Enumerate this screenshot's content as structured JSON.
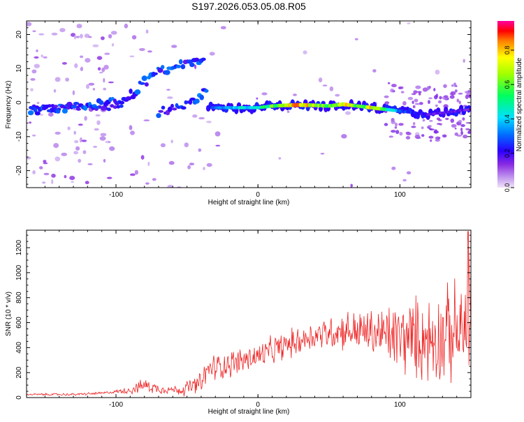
{
  "title": "S197.2026.053.05.08.R05",
  "chart_data": [
    {
      "type": "heatmap",
      "xlabel": "Height of straight line (km)",
      "ylabel": "Frequency (Hz)",
      "xlim": [
        -163,
        150
      ],
      "ylim": [
        -25,
        24
      ],
      "xticks": [
        -100,
        0,
        100
      ],
      "yticks": [
        -20,
        -10,
        0,
        10,
        20
      ],
      "colorbar": {
        "label": "Normalized spectral amplitude",
        "range": [
          0,
          0.97
        ],
        "ticks": [
          0.0,
          0.2,
          0.4,
          0.6,
          0.8
        ]
      },
      "ridge": [
        {
          "x": -160,
          "y": -2
        },
        {
          "x": -140,
          "y": -2
        },
        {
          "x": -120,
          "y": -1
        },
        {
          "x": -100,
          "y": 0
        },
        {
          "x": -90,
          "y": 2
        },
        {
          "x": -80,
          "y": 6
        },
        {
          "x": -70,
          "y": 9
        },
        {
          "x": -60,
          "y": 10
        },
        {
          "x": -45,
          "y": 12
        },
        {
          "x": -38,
          "y": 13
        }
      ],
      "ridge2": [
        {
          "x": -70,
          "y": -3
        },
        {
          "x": -60,
          "y": -2
        },
        {
          "x": -50,
          "y": 0
        },
        {
          "x": -40,
          "y": 2
        },
        {
          "x": -35,
          "y": 4
        }
      ],
      "band": [
        {
          "x": -35,
          "y": -1.5
        },
        {
          "x": -20,
          "y": -1.5
        },
        {
          "x": -10,
          "y": -1.5
        },
        {
          "x": 0,
          "y": -1.5
        },
        {
          "x": 10,
          "y": -1
        },
        {
          "x": 20,
          "y": -0.8
        },
        {
          "x": 30,
          "y": -0.7
        },
        {
          "x": 40,
          "y": -0.8
        },
        {
          "x": 50,
          "y": -1
        },
        {
          "x": 60,
          "y": -0.5
        },
        {
          "x": 70,
          "y": -1
        },
        {
          "x": 80,
          "y": -1.5
        },
        {
          "x": 90,
          "y": -2
        },
        {
          "x": 100,
          "y": -2.5
        },
        {
          "x": 110,
          "y": -3
        },
        {
          "x": 120,
          "y": -3.5
        },
        {
          "x": 130,
          "y": -3
        },
        {
          "x": 140,
          "y": -2.5
        },
        {
          "x": 150,
          "y": -2
        }
      ],
      "band_amplitude": [
        {
          "x": -35,
          "a": 0.25
        },
        {
          "x": -20,
          "a": 0.45
        },
        {
          "x": 0,
          "a": 0.5
        },
        {
          "x": 10,
          "a": 0.65
        },
        {
          "x": 20,
          "a": 0.8
        },
        {
          "x": 30,
          "a": 0.95
        },
        {
          "x": 40,
          "a": 0.75
        },
        {
          "x": 50,
          "a": 0.65
        },
        {
          "x": 60,
          "a": 0.9
        },
        {
          "x": 70,
          "a": 0.6
        },
        {
          "x": 80,
          "a": 0.85
        },
        {
          "x": 90,
          "a": 0.6
        },
        {
          "x": 100,
          "a": 0.35
        },
        {
          "x": 110,
          "a": 0.25
        },
        {
          "x": 120,
          "a": 0.2
        },
        {
          "x": 130,
          "a": 0.2
        },
        {
          "x": 140,
          "a": 0.2
        },
        {
          "x": 150,
          "a": 0.18
        }
      ]
    },
    {
      "type": "line",
      "xlabel": "Height of straight line (km)",
      "ylabel": "SNR (10 * v/v)",
      "xlim": [
        -163,
        150
      ],
      "ylim": [
        0,
        1340
      ],
      "xticks": [
        -100,
        0,
        100
      ],
      "yticks": [
        0,
        200,
        400,
        600,
        800,
        1000,
        1200
      ],
      "color": "#ee2222",
      "trend": [
        {
          "x": -163,
          "y": 25
        },
        {
          "x": -130,
          "y": 25
        },
        {
          "x": -110,
          "y": 35
        },
        {
          "x": -90,
          "y": 60
        },
        {
          "x": -80,
          "y": 100
        },
        {
          "x": -70,
          "y": 70
        },
        {
          "x": -55,
          "y": 60
        },
        {
          "x": -40,
          "y": 110
        },
        {
          "x": -35,
          "y": 230
        },
        {
          "x": -20,
          "y": 270
        },
        {
          "x": 0,
          "y": 330
        },
        {
          "x": 20,
          "y": 420
        },
        {
          "x": 40,
          "y": 500
        },
        {
          "x": 60,
          "y": 540
        },
        {
          "x": 80,
          "y": 520
        },
        {
          "x": 100,
          "y": 480
        },
        {
          "x": 120,
          "y": 470
        },
        {
          "x": 140,
          "y": 520
        },
        {
          "x": 150,
          "y": 550
        }
      ],
      "noise_envelope": [
        {
          "x": -163,
          "amp": 8
        },
        {
          "x": -100,
          "amp": 12
        },
        {
          "x": -80,
          "amp": 55
        },
        {
          "x": -60,
          "amp": 30
        },
        {
          "x": -35,
          "amp": 110
        },
        {
          "x": 0,
          "amp": 110
        },
        {
          "x": 40,
          "amp": 120
        },
        {
          "x": 80,
          "amp": 190
        },
        {
          "x": 100,
          "amp": 300
        },
        {
          "x": 130,
          "amp": 380
        },
        {
          "x": 150,
          "amp": 420
        }
      ],
      "peak": {
        "x": 148,
        "y": 1330
      }
    }
  ]
}
